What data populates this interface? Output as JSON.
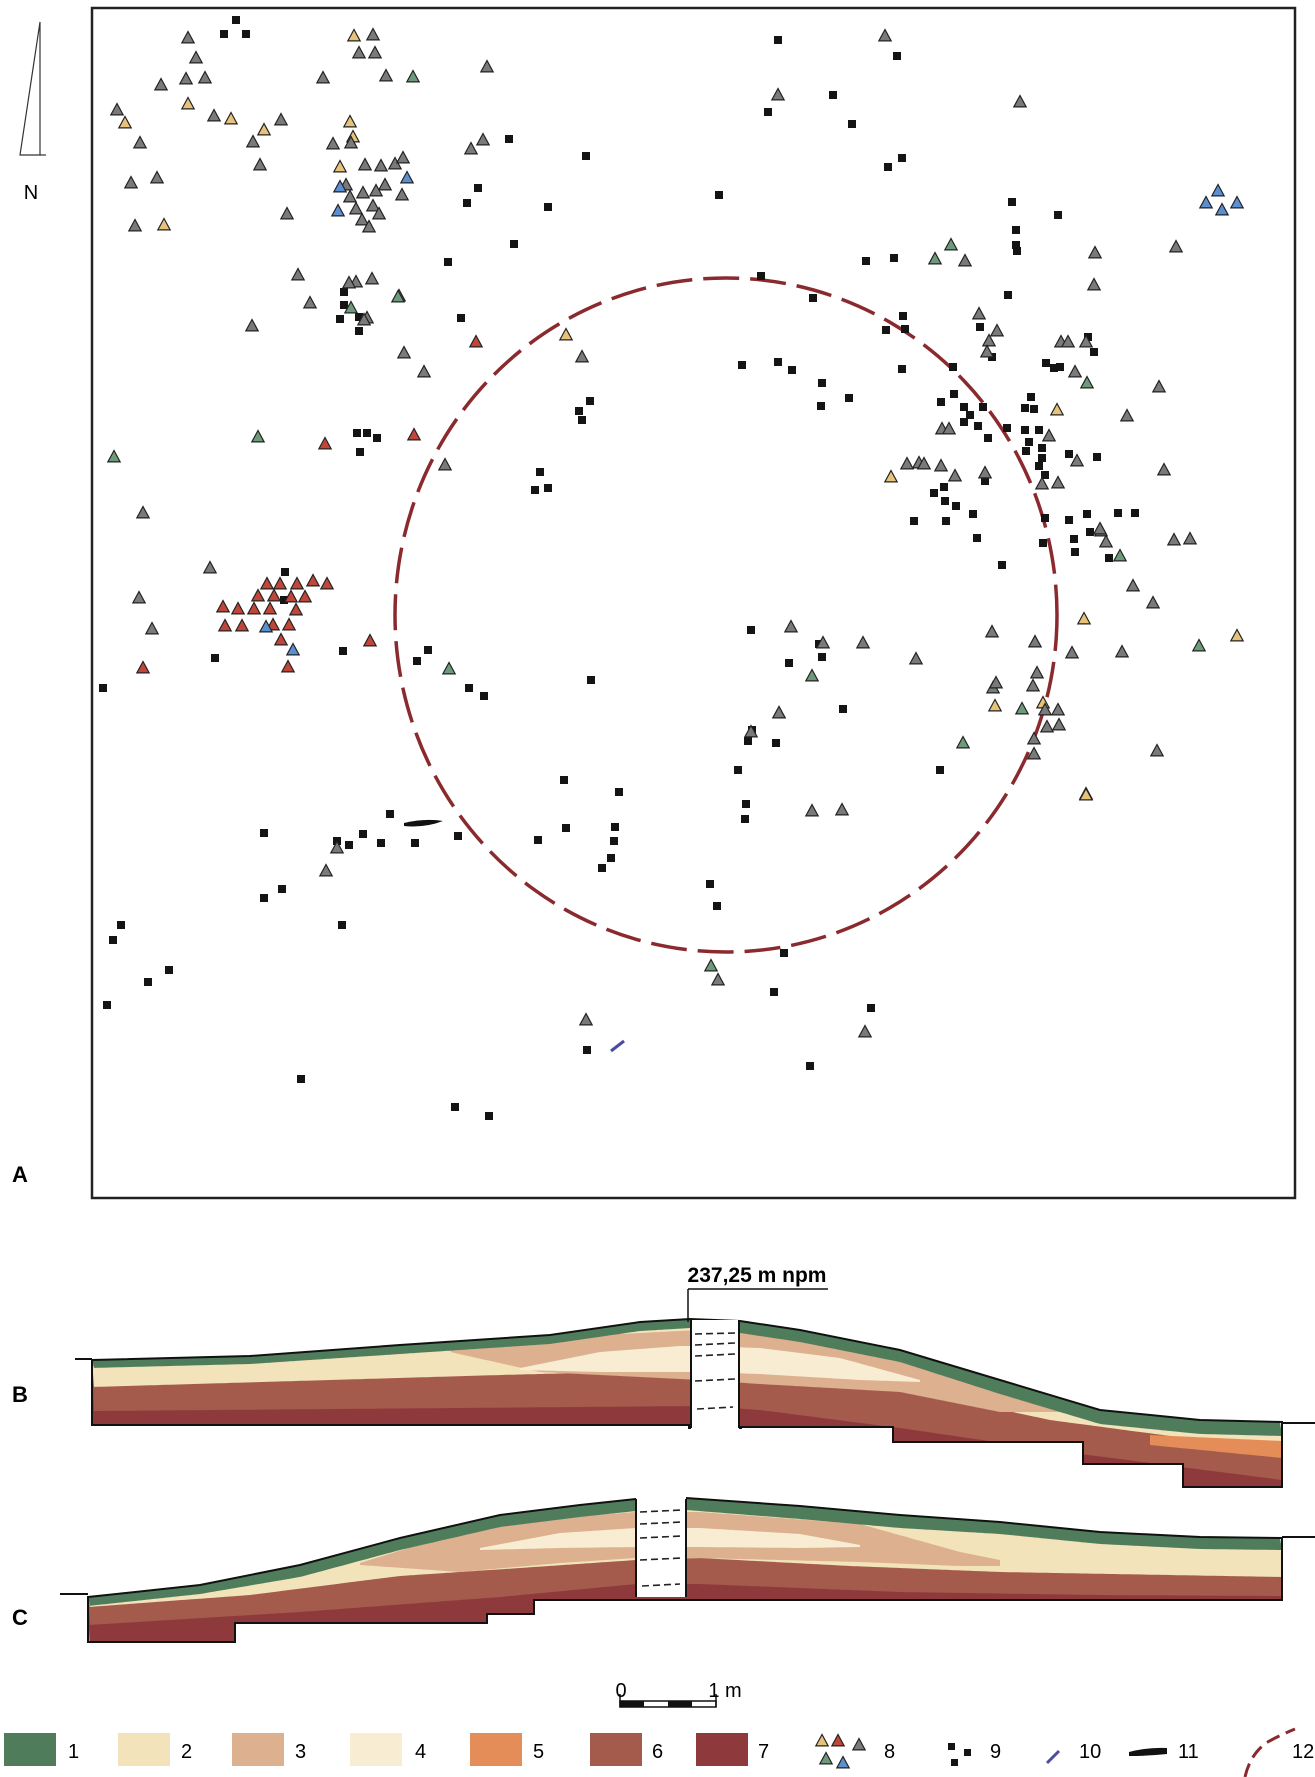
{
  "north": {
    "label": "N"
  },
  "panels": {
    "a": {
      "label": "A"
    },
    "b": {
      "label": "B",
      "elevation_label": "237,25 m npm"
    },
    "c": {
      "label": "C"
    }
  },
  "scale": {
    "zero": "0",
    "one": "1 m"
  },
  "legend": [
    {
      "n": "1",
      "color": "#4f7d5b"
    },
    {
      "n": "2",
      "color": "#f3e3bb"
    },
    {
      "n": "3",
      "color": "#ddb08f"
    },
    {
      "n": "4",
      "color": "#f8edd2"
    },
    {
      "n": "5",
      "color": "#e48d58"
    },
    {
      "n": "6",
      "color": "#a55b4b"
    },
    {
      "n": "7",
      "color": "#8e3a3c"
    },
    {
      "n": "8",
      "note": "triangles (yellow, red, grey, green, blue)"
    },
    {
      "n": "9",
      "note": "black squares"
    },
    {
      "n": "10",
      "note": "short blue line"
    },
    {
      "n": "11",
      "note": "black lens"
    },
    {
      "n": "12",
      "note": "dashed red line"
    }
  ],
  "colors": {
    "tri_grey": "#7a7a7a",
    "tri_yellow": "#e6c27a",
    "tri_red": "#c0463a",
    "tri_green": "#6e9a7c",
    "tri_blue": "#5b8fd0",
    "square": "#141414",
    "ring": "#8a2a2e",
    "topsoil": "#4f7d5b"
  }
}
